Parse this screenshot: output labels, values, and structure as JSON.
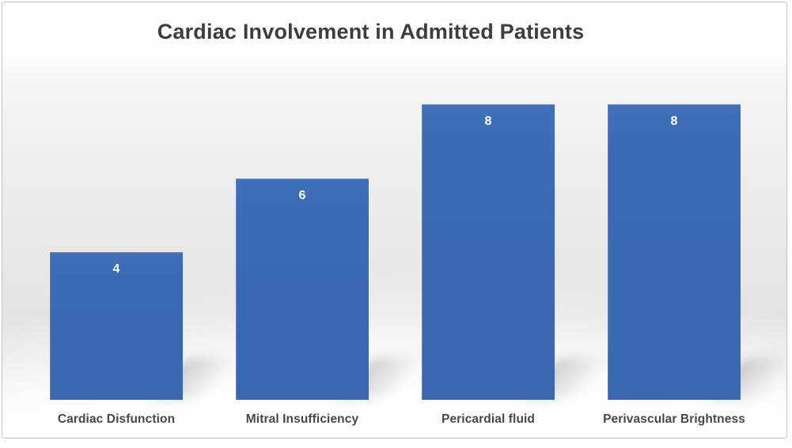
{
  "chart_data": {
    "type": "bar",
    "title": "Cardiac Involvement in Admitted Patients",
    "categories": [
      "Cardiac Disfunction",
      "Mitral Insufficiency",
      "Pericardial fluid",
      "Perivascular Brightness"
    ],
    "values": [
      4,
      6,
      8,
      8
    ],
    "data_labels": [
      "4",
      "6",
      "8",
      "8"
    ],
    "xlabel": "",
    "ylabel": "",
    "ylim": [
      0,
      8
    ],
    "grid": false,
    "legend": false,
    "axis_lines": false,
    "colors": {
      "bar": "#3a6ab4",
      "data_label": "#ffffff",
      "title": "#3d3d3d",
      "category_label": "#474747",
      "frame_border": "#c2c2c2",
      "backdrop_gray": "#e6e6e6"
    }
  }
}
